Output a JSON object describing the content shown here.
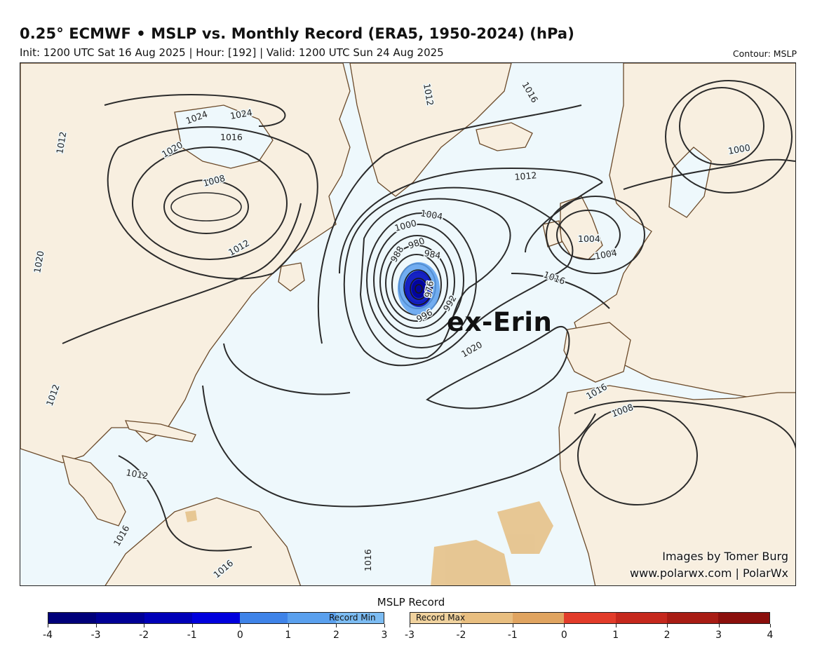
{
  "header": {
    "title": "0.25° ECMWF • MSLP vs. Monthly Record (ERA5, 1950-2024) (hPa)",
    "subtitle": "Init: 1200 UTC Sat 16 Aug 2025 | Hour: [192] | Valid: 1200 UTC Sun 24 Aug 2025",
    "contour_note": "Contour: MSLP"
  },
  "map": {
    "storm_label": "ex-Erin",
    "credit_line1": "Images by Tomer Burg",
    "credit_line2": "www.polarwx.com | PolarWx",
    "colors": {
      "ocean": "#eef8fc",
      "land": "#f8efe0",
      "coast": "#6b4a2a",
      "isobar": "#2b2b2b",
      "record_max_fill": "#e6c48e",
      "record_min_fill": "#2e54c8"
    },
    "isobar_labels": [
      "1024",
      "1024",
      "1020",
      "1016",
      "1008",
      "1012",
      "1012",
      "1020",
      "1004",
      "1000",
      "984",
      "980",
      "988",
      "976",
      "992",
      "996",
      "1016",
      "1020",
      "1012",
      "1016",
      "1004",
      "1000",
      "1004",
      "1012",
      "1012",
      "1016",
      "1008",
      "1016",
      "1016",
      "1016",
      "1012"
    ]
  },
  "legend": {
    "title": "MSLP Record",
    "min_label": "Record Min",
    "max_label": "Record Max",
    "min_colors": [
      "#00007a",
      "#000096",
      "#0000b8",
      "#0000dd",
      "#3f83e8",
      "#5aa0ee",
      "#7cbcf3"
    ],
    "max_colors": [
      "#f0d29e",
      "#e8be80",
      "#e0a460",
      "#e23c2a",
      "#c5281d",
      "#a81c14",
      "#8b0f0c"
    ],
    "min_ticks": [
      "-4",
      "-3",
      "-2",
      "-1",
      "0",
      "1",
      "2",
      "3"
    ],
    "max_ticks": [
      "-3",
      "-2",
      "-1",
      "0",
      "1",
      "2",
      "3",
      "4"
    ]
  }
}
